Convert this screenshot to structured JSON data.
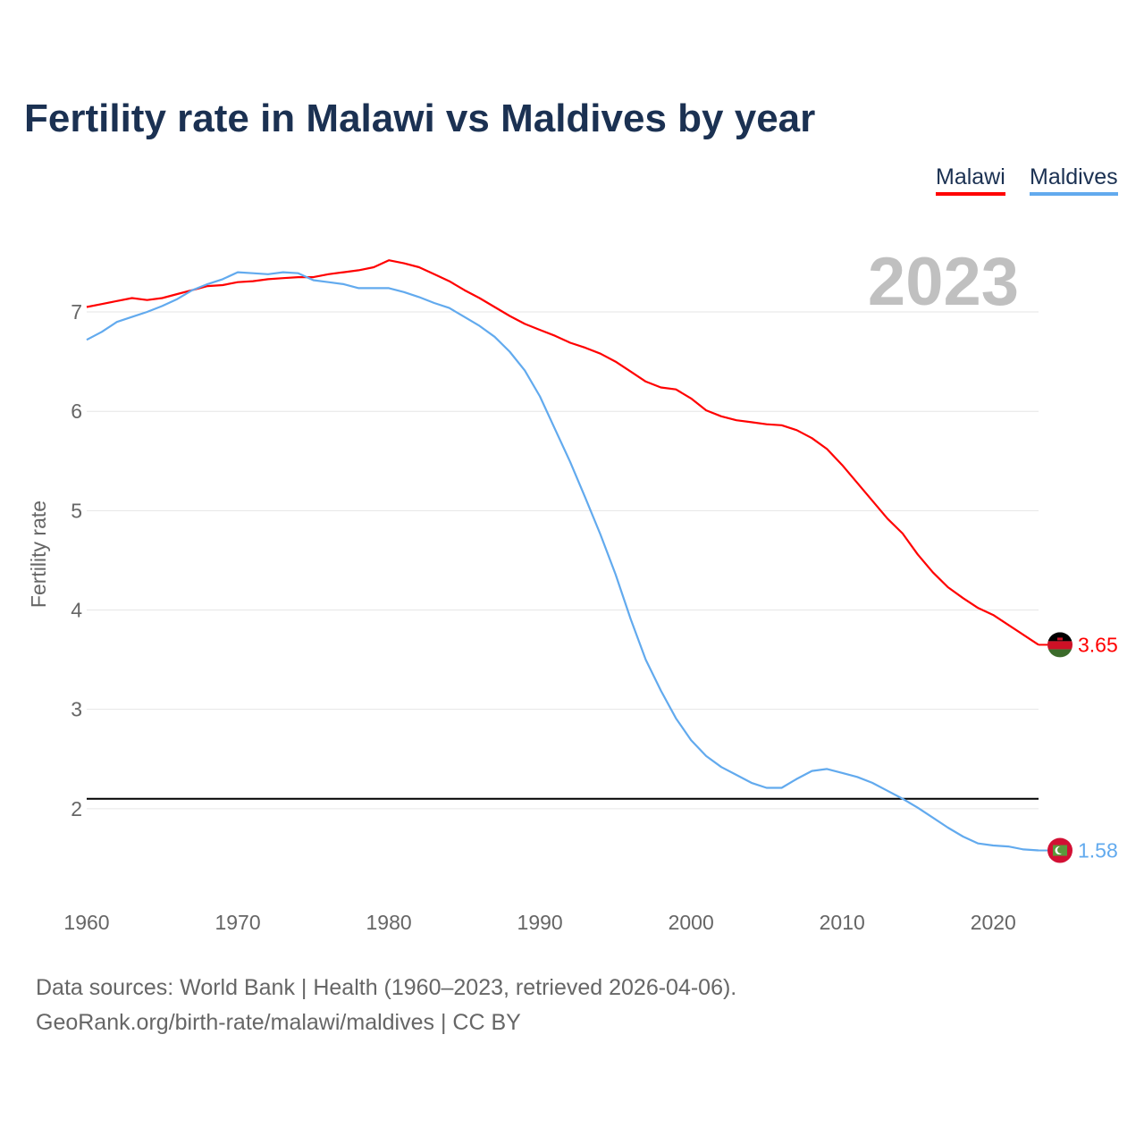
{
  "header": {
    "title": "Fertility rate in Malawi vs Maldives by year"
  },
  "legend": [
    {
      "label": "Malawi",
      "color": "#ff0000"
    },
    {
      "label": "Maldives",
      "color": "#62aaee"
    }
  ],
  "year_label": "2023",
  "footer": {
    "line1": "Data sources: World Bank | Health (1960–2023, retrieved 2026-04-06).",
    "line2": "GeoRank.org/birth-rate/malawi/maldives | CC BY"
  },
  "chart_data": {
    "type": "line",
    "title": "Fertility rate in Malawi vs Maldives by year",
    "xlabel": "",
    "ylabel": "Fertility rate",
    "xlim": [
      1960,
      2023
    ],
    "ylim": [
      1.0,
      7.9
    ],
    "xticks": [
      1960,
      1970,
      1980,
      1990,
      2000,
      2010,
      2020
    ],
    "yticks": [
      2,
      3,
      4,
      5,
      6,
      7
    ],
    "grid": true,
    "legend_position": "top-right",
    "reference_line": {
      "y": 2.1,
      "color": "#000000"
    },
    "x": [
      1960,
      1961,
      1962,
      1963,
      1964,
      1965,
      1966,
      1967,
      1968,
      1969,
      1970,
      1971,
      1972,
      1973,
      1974,
      1975,
      1976,
      1977,
      1978,
      1979,
      1980,
      1981,
      1982,
      1983,
      1984,
      1985,
      1986,
      1987,
      1988,
      1989,
      1990,
      1991,
      1992,
      1993,
      1994,
      1995,
      1996,
      1997,
      1998,
      1999,
      2000,
      2001,
      2002,
      2003,
      2004,
      2005,
      2006,
      2007,
      2008,
      2009,
      2010,
      2011,
      2012,
      2013,
      2014,
      2015,
      2016,
      2017,
      2018,
      2019,
      2020,
      2021,
      2022,
      2023
    ],
    "series": [
      {
        "name": "Malawi",
        "color": "#ff0000",
        "end_label": "3.65",
        "flag": "malawi",
        "values": [
          7.05,
          7.08,
          7.11,
          7.14,
          7.12,
          7.14,
          7.18,
          7.22,
          7.26,
          7.27,
          7.3,
          7.31,
          7.33,
          7.34,
          7.35,
          7.35,
          7.38,
          7.4,
          7.42,
          7.45,
          7.52,
          7.49,
          7.45,
          7.38,
          7.31,
          7.22,
          7.14,
          7.05,
          6.96,
          6.88,
          6.82,
          6.76,
          6.69,
          6.64,
          6.58,
          6.5,
          6.4,
          6.3,
          6.24,
          6.22,
          6.13,
          6.01,
          5.95,
          5.91,
          5.89,
          5.87,
          5.86,
          5.81,
          5.73,
          5.62,
          5.46,
          5.28,
          5.1,
          4.92,
          4.77,
          4.56,
          4.38,
          4.23,
          4.12,
          4.02,
          3.95,
          3.85,
          3.75,
          3.65
        ]
      },
      {
        "name": "Maldives",
        "color": "#62aaee",
        "end_label": "1.58",
        "flag": "maldives",
        "values": [
          6.72,
          6.8,
          6.9,
          6.95,
          7.0,
          7.06,
          7.13,
          7.22,
          7.28,
          7.33,
          7.4,
          7.39,
          7.38,
          7.4,
          7.39,
          7.32,
          7.3,
          7.28,
          7.24,
          7.24,
          7.24,
          7.2,
          7.15,
          7.09,
          7.04,
          6.95,
          6.86,
          6.75,
          6.6,
          6.41,
          6.15,
          5.82,
          5.49,
          5.13,
          4.76,
          4.36,
          3.91,
          3.5,
          3.19,
          2.91,
          2.69,
          2.53,
          2.42,
          2.34,
          2.26,
          2.21,
          2.21,
          2.3,
          2.38,
          2.4,
          2.36,
          2.32,
          2.26,
          2.18,
          2.1,
          2.01,
          1.91,
          1.81,
          1.72,
          1.65,
          1.63,
          1.62,
          1.59,
          1.58
        ]
      }
    ]
  }
}
